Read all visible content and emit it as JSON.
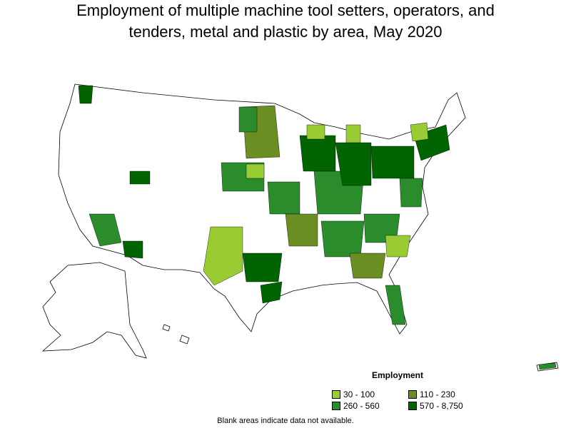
{
  "title": "Employment of multiple machine tool setters, operators, and tenders, metal and plastic by area, May 2020",
  "legend": {
    "title": "Employment",
    "items": [
      {
        "label": "30 - 100",
        "color": "#99cc33"
      },
      {
        "label": "110 - 230",
        "color": "#6b8e23"
      },
      {
        "label": "260 - 560",
        "color": "#2a8c2a"
      },
      {
        "label": "570 - 8,750",
        "color": "#006400"
      }
    ]
  },
  "footnote": "Blank areas indicate data not available."
}
